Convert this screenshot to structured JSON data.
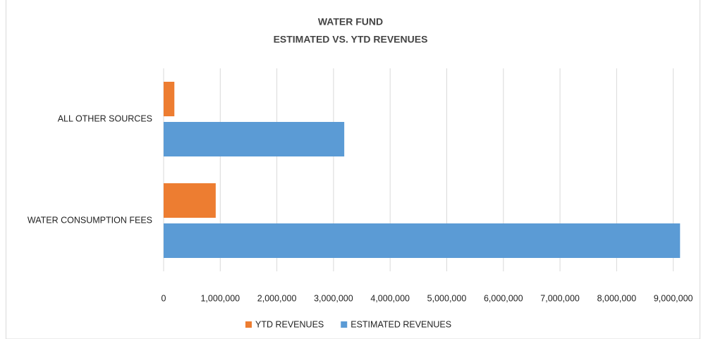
{
  "chart_data": {
    "type": "barh",
    "title": "WATER FUND",
    "subtitle": "ESTIMATED VS. YTD REVENUES",
    "categories": [
      "ALL OTHER SOURCES",
      "WATER CONSUMPTION FEES"
    ],
    "series": [
      {
        "name": "YTD REVENUES",
        "color": "#ed7d31",
        "values": [
          190000,
          920000
        ]
      },
      {
        "name": "ESTIMATED REVENUES",
        "color": "#5b9bd5",
        "values": [
          3190000,
          9120000
        ]
      }
    ],
    "xlim": [
      0,
      9440000
    ],
    "xticks": [
      0,
      {
        "value": 1000000,
        "label": "1,000,000"
      },
      {
        "value": 2000000,
        "label": "2,000,000"
      },
      {
        "value": 3000000,
        "label": "3,000,000"
      },
      {
        "value": 4000000,
        "label": "4,000,000"
      },
      {
        "value": 5000000,
        "label": "5,000,000"
      },
      {
        "value": 6000000,
        "label": "6,000,000"
      },
      {
        "value": 7000000,
        "label": "7,000,000"
      },
      {
        "value": 8000000,
        "label": "8,000,000"
      },
      {
        "value": 9000000,
        "label": "9,000,000"
      }
    ],
    "grid": true,
    "legend": "bottom"
  }
}
